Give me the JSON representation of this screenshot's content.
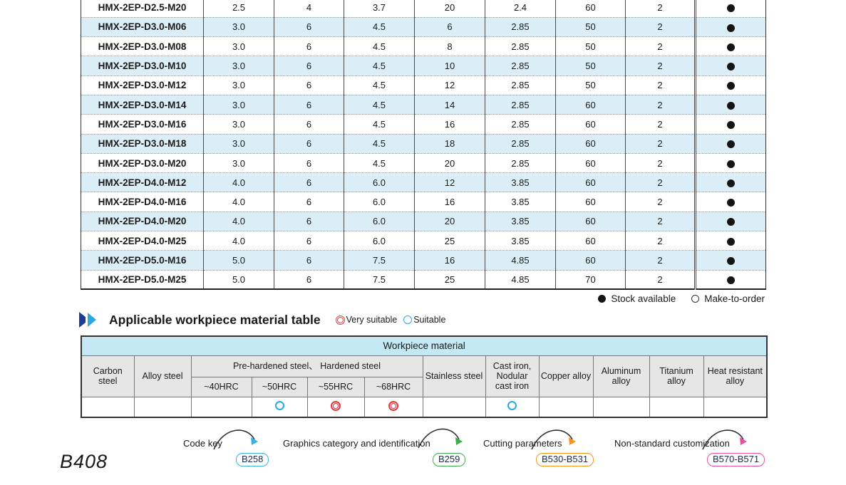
{
  "spec_table": {
    "rows": [
      {
        "model": "HMX-2EP-D2.5-M20",
        "values": [
          "2.5",
          "4",
          "3.7",
          "20",
          "2.4",
          "60",
          "2"
        ],
        "stock": "Stock available"
      },
      {
        "model": "HMX-2EP-D3.0-M06",
        "values": [
          "3.0",
          "6",
          "4.5",
          "6",
          "2.85",
          "50",
          "2"
        ],
        "stock": "Stock available"
      },
      {
        "model": "HMX-2EP-D3.0-M08",
        "values": [
          "3.0",
          "6",
          "4.5",
          "8",
          "2.85",
          "50",
          "2"
        ],
        "stock": "Stock available"
      },
      {
        "model": "HMX-2EP-D3.0-M10",
        "values": [
          "3.0",
          "6",
          "4.5",
          "10",
          "2.85",
          "50",
          "2"
        ],
        "stock": "Stock available"
      },
      {
        "model": "HMX-2EP-D3.0-M12",
        "values": [
          "3.0",
          "6",
          "4.5",
          "12",
          "2.85",
          "50",
          "2"
        ],
        "stock": "Stock available"
      },
      {
        "model": "HMX-2EP-D3.0-M14",
        "values": [
          "3.0",
          "6",
          "4.5",
          "14",
          "2.85",
          "60",
          "2"
        ],
        "stock": "Stock available"
      },
      {
        "model": "HMX-2EP-D3.0-M16",
        "values": [
          "3.0",
          "6",
          "4.5",
          "16",
          "2.85",
          "60",
          "2"
        ],
        "stock": "Stock available"
      },
      {
        "model": "HMX-2EP-D3.0-M18",
        "values": [
          "3.0",
          "6",
          "4.5",
          "18",
          "2.85",
          "60",
          "2"
        ],
        "stock": "Stock available"
      },
      {
        "model": "HMX-2EP-D3.0-M20",
        "values": [
          "3.0",
          "6",
          "4.5",
          "20",
          "2.85",
          "60",
          "2"
        ],
        "stock": "Stock available"
      },
      {
        "model": "HMX-2EP-D4.0-M12",
        "values": [
          "4.0",
          "6",
          "6.0",
          "12",
          "3.85",
          "60",
          "2"
        ],
        "stock": "Stock available"
      },
      {
        "model": "HMX-2EP-D4.0-M16",
        "values": [
          "4.0",
          "6",
          "6.0",
          "16",
          "3.85",
          "60",
          "2"
        ],
        "stock": "Stock available"
      },
      {
        "model": "HMX-2EP-D4.0-M20",
        "values": [
          "4.0",
          "6",
          "6.0",
          "20",
          "3.85",
          "60",
          "2"
        ],
        "stock": "Stock available"
      },
      {
        "model": "HMX-2EP-D4.0-M25",
        "values": [
          "4.0",
          "6",
          "6.0",
          "25",
          "3.85",
          "60",
          "2"
        ],
        "stock": "Stock available"
      },
      {
        "model": "HMX-2EP-D5.0-M16",
        "values": [
          "5.0",
          "6",
          "7.5",
          "16",
          "4.85",
          "60",
          "2"
        ],
        "stock": "Stock available"
      },
      {
        "model": "HMX-2EP-D5.0-M25",
        "values": [
          "5.0",
          "6",
          "7.5",
          "25",
          "4.85",
          "70",
          "2"
        ],
        "stock": "Stock available"
      }
    ],
    "legend": {
      "stock_available": "Stock available",
      "make_to_order": "Make-to-order"
    },
    "colors": {
      "alt_row": "#dbeef8",
      "stock_dot": "#141414"
    }
  },
  "section": {
    "title": "Applicable workpiece material table",
    "very_suitable": "Very suitable",
    "suitable": "Suitable",
    "very_suitable_color": "#e8383d",
    "suitable_color": "#29abe2"
  },
  "material_table": {
    "title": "Workpiece material",
    "headers": {
      "carbon": "Carbon steel",
      "alloy": "Alloy steel",
      "prehardened_group": "Pre-hardened steel、 Hardened steel",
      "hrc": [
        "~40HRC",
        "~50HRC",
        "~55HRC",
        "~68HRC"
      ],
      "stainless": "Stainless steel",
      "cast_iron": "Cast iron, Nodular cast iron",
      "copper": "Copper alloy",
      "aluminum": "Aluminum alloy",
      "titanium": "Titanium alloy",
      "heat": "Heat resistant alloy"
    },
    "marks": [
      "",
      "",
      "",
      "suitable",
      "very",
      "very",
      "",
      "suitable",
      "",
      "",
      "",
      ""
    ],
    "colors": {
      "title_bg": "#c4e8f4",
      "header_bg": "#e6e6e6"
    }
  },
  "annotations": [
    {
      "label": "Code key",
      "badge": "B258",
      "color": "#36b3e3"
    },
    {
      "label": "Graphics category and identification",
      "badge": "B259",
      "color": "#3fae49"
    },
    {
      "label": "Cutting parameters",
      "badge": "B530-B531",
      "color": "#f7941d"
    },
    {
      "label": "Non-standard customization",
      "badge": "B570-B571",
      "color": "#ec4fa0"
    }
  ],
  "page_number": "B408"
}
